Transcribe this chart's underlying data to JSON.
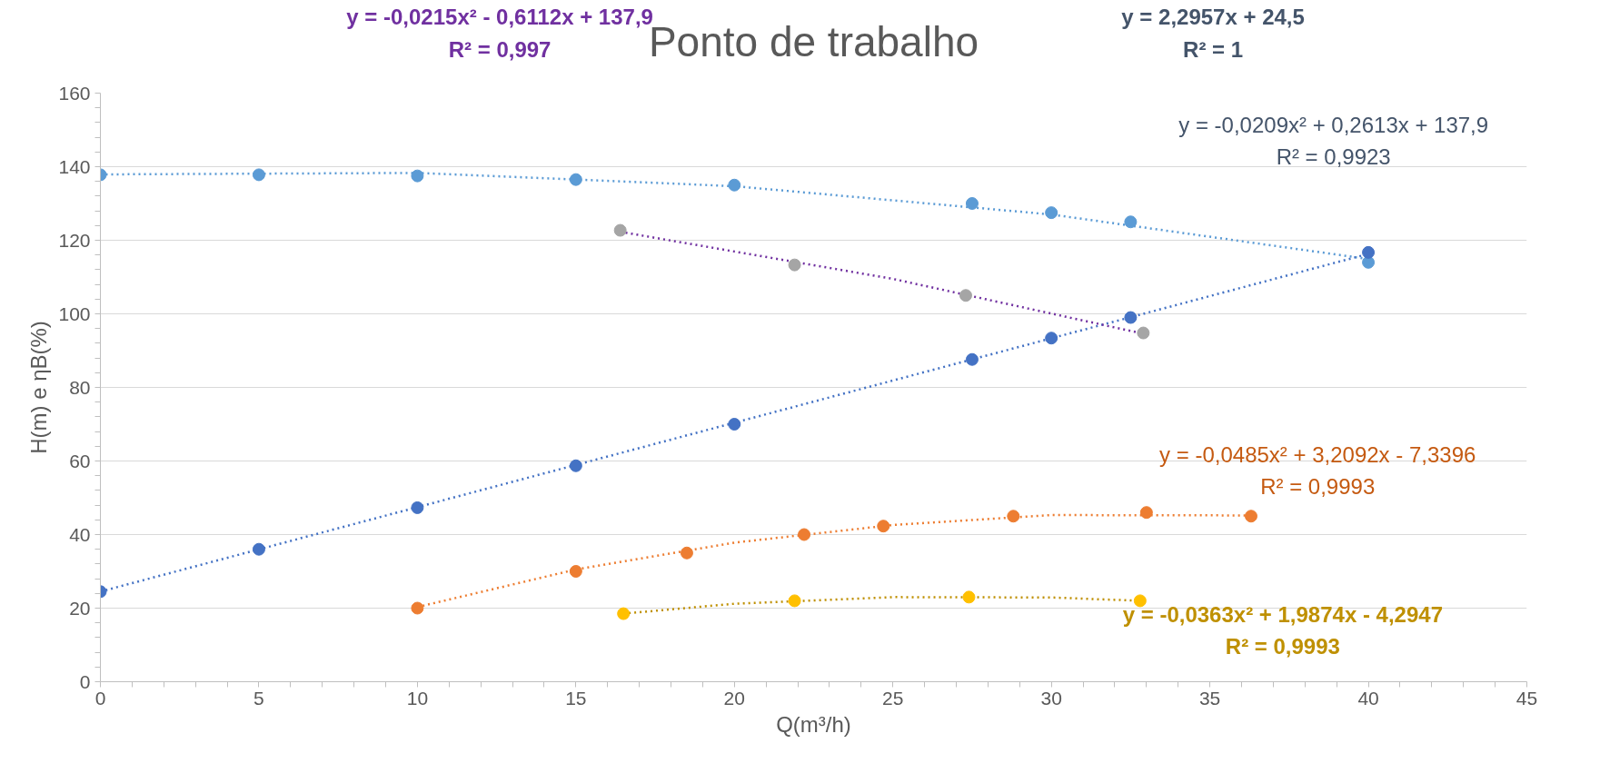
{
  "chart_data": {
    "type": "scatter",
    "title": "Ponto de trabalho",
    "xlabel": "Q(m³/h)",
    "ylabel": "H(m) e ηB(%)",
    "xlim": [
      0,
      45
    ],
    "xticks": [
      0,
      5,
      10,
      15,
      20,
      25,
      30,
      35,
      40,
      45
    ],
    "ylim": [
      0,
      160
    ],
    "yticks": [
      0,
      20,
      40,
      60,
      80,
      100,
      120,
      140,
      160
    ],
    "grid": "y",
    "series": [
      {
        "type": "line",
        "line_style": "dotted",
        "color": "#5b9bd5",
        "x": [
          0,
          10,
          20,
          30,
          40
        ],
        "values": [
          137.9,
          138.3,
          134.7,
          127.0,
          114.9
        ]
      },
      {
        "type": "line",
        "line_style": "dotted",
        "color": "#4472c4",
        "x": [
          0,
          40
        ],
        "values": [
          24.5,
          116.3
        ]
      },
      {
        "type": "line",
        "line_style": "dotted",
        "color": "#7030a0",
        "x": [
          16.4,
          25,
          32.9
        ],
        "values": [
          122.3,
          109.5,
          94.6
        ]
      },
      {
        "type": "line",
        "line_style": "dotted",
        "color": "#ed7d31",
        "x": [
          10,
          15,
          20,
          25,
          30,
          36.3
        ],
        "values": [
          20.3,
          30.5,
          37.8,
          42.6,
          45.3,
          45.2
        ]
      },
      {
        "type": "line",
        "line_style": "dotted",
        "color": "#bf9000",
        "x": [
          16.5,
          20,
          25,
          30,
          32.8
        ],
        "values": [
          18.5,
          21.2,
          23.0,
          22.9,
          22.0
        ]
      },
      {
        "marker": "circle",
        "color": "#5b9bd5",
        "x": [
          0,
          5,
          10,
          15,
          20,
          27.5,
          30,
          32.5,
          40
        ],
        "values": [
          137.8,
          137.8,
          137.5,
          136.5,
          135,
          130,
          127.5,
          125,
          114
        ]
      },
      {
        "marker": "circle",
        "color": "#4472c4",
        "x": [
          0,
          5,
          10,
          15,
          20,
          27.5,
          30,
          32.5,
          40
        ],
        "values": [
          24.5,
          36,
          47.3,
          58.7,
          70,
          87.6,
          93.4,
          99,
          116.7
        ]
      },
      {
        "marker": "circle",
        "color": "#a5a5a5",
        "x": [
          16.4,
          21.9,
          27.3,
          32.9
        ],
        "values": [
          122.7,
          113.3,
          105,
          94.8
        ]
      },
      {
        "marker": "circle",
        "color": "#ed7d31",
        "x": [
          10,
          15,
          18.5,
          22.2,
          24.7,
          28.8,
          33,
          36.3
        ],
        "values": [
          20,
          30,
          35,
          40,
          42.3,
          45,
          46,
          45
        ]
      },
      {
        "marker": "circle",
        "color": "#ffc000",
        "x": [
          16.5,
          21.9,
          27.4,
          32.8
        ],
        "values": [
          18.5,
          22,
          23,
          22
        ]
      }
    ],
    "annotations": [
      "y = -0,0215x² - 0,6112x + 137,9\nR² = 0,997",
      "y = 2,2957x + 24,5\nR² = 1",
      "y = -0,0209x² + 0,2613x + 137,9\nR² = 0,9923",
      "y = -0,0485x² + 3,2092x - 7,3396\nR² = 0,9993",
      "y = -0,0363x² + 1,9874x - 4,2947\nR² = 0,9993"
    ]
  }
}
